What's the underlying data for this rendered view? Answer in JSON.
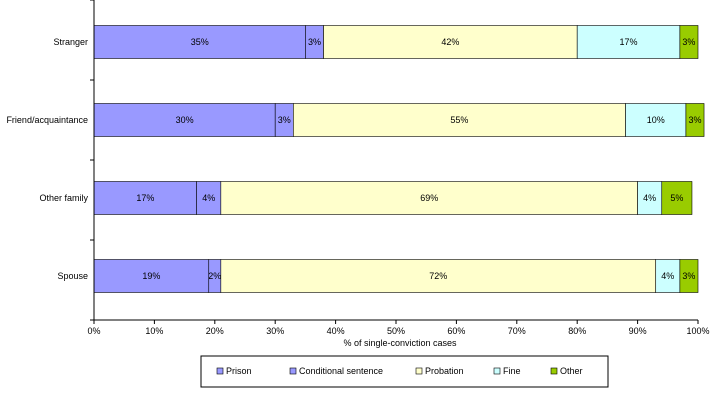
{
  "chart_data": {
    "type": "bar",
    "orientation": "horizontal",
    "stacked": true,
    "categories": [
      "Stranger",
      "Friend/acquaintance",
      "Other family",
      "Spouse"
    ],
    "series": [
      {
        "name": "Prison",
        "color": "#9999ff",
        "values": [
          35,
          30,
          17,
          19
        ]
      },
      {
        "name": "Conditional sentence",
        "color": "#9999ff",
        "values": [
          3,
          3,
          4,
          2
        ]
      },
      {
        "name": "Probation",
        "color": "#ffffcc",
        "values": [
          42,
          55,
          69,
          72
        ]
      },
      {
        "name": "Fine",
        "color": "#ccffff",
        "values": [
          17,
          10,
          4,
          4
        ]
      },
      {
        "name": "Other",
        "color": "#99cc00",
        "values": [
          3,
          3,
          5,
          3
        ]
      }
    ],
    "data_labels": [
      [
        "35%",
        "3%",
        "42%",
        "17%",
        "3%"
      ],
      [
        "30%",
        "3%",
        "55%",
        "10%",
        "3%"
      ],
      [
        "17%",
        "4%",
        "69%",
        "4%",
        "5%"
      ],
      [
        "19%",
        "2%",
        "72%",
        "4%",
        "3%"
      ]
    ],
    "xlim": [
      0,
      100
    ],
    "xticks": [
      "0%",
      "10%",
      "20%",
      "30%",
      "40%",
      "50%",
      "60%",
      "70%",
      "80%",
      "90%",
      "100%"
    ],
    "xlabel": "% of single-conviction cases",
    "title": "",
    "ylabel": "",
    "grid": false,
    "legend_position": "bottom"
  }
}
